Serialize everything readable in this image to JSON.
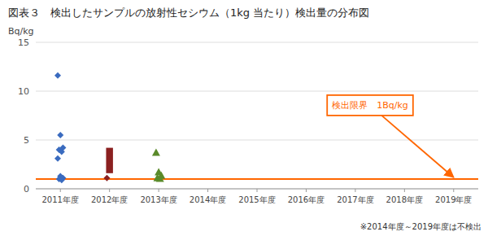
{
  "chart_data": {
    "type": "scatter",
    "title": "図表３　検出したサンプルの放射性セシウム（1kg 当たり）検出量の分布図",
    "ylabel": "Bq/kg",
    "footnote": "※2014年度～2019年度は不検出",
    "categories": [
      "2011年度",
      "2012年度",
      "2013年度",
      "2014年度",
      "2015年度",
      "2016年度",
      "2017年度",
      "2018年度",
      "2019年度"
    ],
    "series": [
      {
        "type": "scatter",
        "marker": "diamond",
        "color": "#3a6bbf",
        "x": [
          "2011年度",
          "2011年度",
          "2011年度",
          "2011年度",
          "2011年度",
          "2011年度",
          "2011年度",
          "2011年度",
          "2011年度",
          "2011年度"
        ],
        "values": [
          11.6,
          5.5,
          4.2,
          4.0,
          3.8,
          3.1,
          1.3,
          1.1,
          1.0,
          0.9
        ]
      },
      {
        "type": "range_bar",
        "color": "#8b2020",
        "x": [
          "2012年度"
        ],
        "low": [
          1.6
        ],
        "high": [
          4.2
        ]
      },
      {
        "type": "scatter",
        "marker": "diamond",
        "color": "#8b2020",
        "x": [
          "2012年度"
        ],
        "values": [
          1.1
        ]
      },
      {
        "type": "scatter",
        "marker": "triangle",
        "color": "#5a8a2a",
        "x": [
          "2013年度",
          "2013年度",
          "2013年度",
          "2013年度",
          "2013年度"
        ],
        "values": [
          3.7,
          1.7,
          1.35,
          1.1,
          1.05
        ]
      }
    ],
    "detection_limit": {
      "value": 1.0,
      "label": "検出限界　1Bq/kg",
      "color": "#ff6600"
    },
    "ylim": [
      0,
      15
    ],
    "yticks": [
      0,
      5,
      10,
      15
    ],
    "grid": true
  }
}
